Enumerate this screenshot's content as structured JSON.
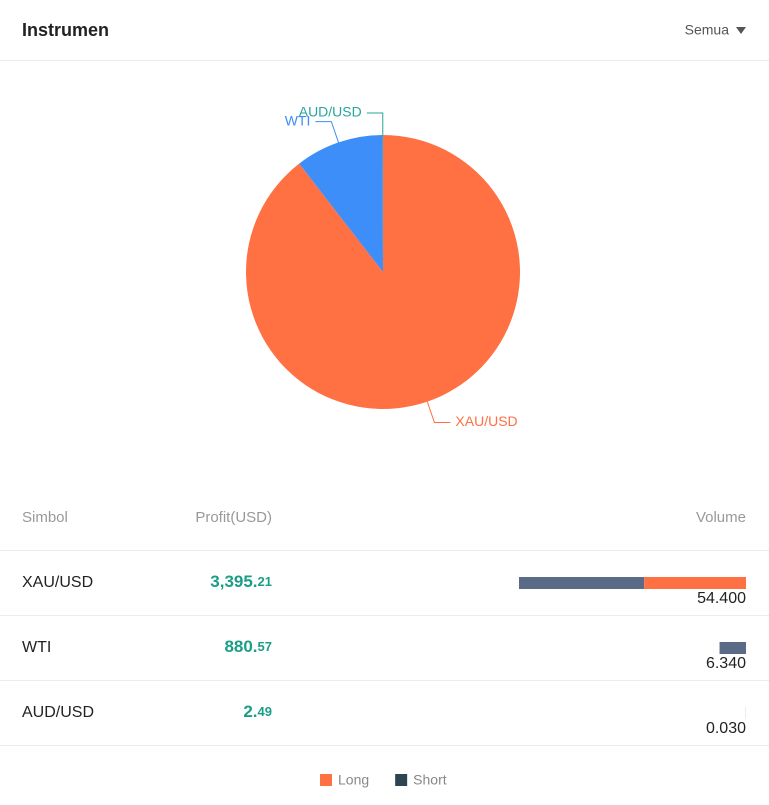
{
  "header": {
    "title": "Instrumen",
    "filter": "Semua"
  },
  "chart_data": {
    "type": "pie",
    "categories": [
      "XAU/USD",
      "WTI",
      "AUD/USD"
    ],
    "values": [
      54.4,
      6.34,
      0.03
    ],
    "colors": [
      "#ff7043",
      "#3d8ef8",
      "#26a69a"
    ]
  },
  "table": {
    "columns": [
      "Simbol",
      "Profit(USD)",
      "Volume"
    ],
    "rows": [
      {
        "symbol": "XAU/USD",
        "profit_main": "3,395.",
        "profit_fraction": "21",
        "volume": "54.400",
        "short": 30,
        "long": 24.4
      },
      {
        "symbol": "WTI",
        "profit_main": "880.",
        "profit_fraction": "57",
        "volume": "6.340",
        "short": 6.34,
        "long": 0
      },
      {
        "symbol": "AUD/USD",
        "profit_main": "2.",
        "profit_fraction": "49",
        "volume": "0.030",
        "short": 0.03,
        "long": 0
      }
    ],
    "bar_colors": {
      "long": "#ff7043",
      "short": "#5b6a85"
    }
  },
  "legend": [
    {
      "name": "Long",
      "color": "#ff7043"
    },
    {
      "name": "Short",
      "color": "#2e4451"
    }
  ]
}
